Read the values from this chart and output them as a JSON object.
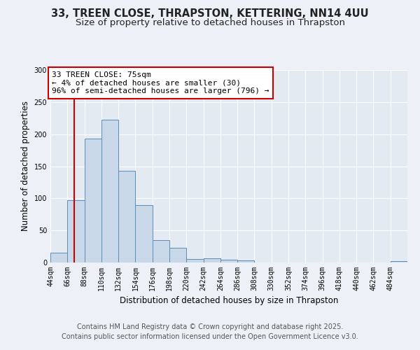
{
  "title_line1": "33, TREEN CLOSE, THRAPSTON, KETTERING, NN14 4UU",
  "title_line2": "Size of property relative to detached houses in Thrapston",
  "xlabel": "Distribution of detached houses by size in Thrapston",
  "ylabel": "Number of detached properties",
  "bin_labels": [
    "44sqm",
    "66sqm",
    "88sqm",
    "110sqm",
    "132sqm",
    "154sqm",
    "176sqm",
    "198sqm",
    "220sqm",
    "242sqm",
    "264sqm",
    "286sqm",
    "308sqm",
    "330sqm",
    "352sqm",
    "374sqm",
    "396sqm",
    "418sqm",
    "440sqm",
    "462sqm",
    "484sqm"
  ],
  "bin_edges": [
    44,
    66,
    88,
    110,
    132,
    154,
    176,
    198,
    220,
    242,
    264,
    286,
    308,
    330,
    352,
    374,
    396,
    418,
    440,
    462,
    484,
    506
  ],
  "bar_heights": [
    15,
    97,
    193,
    222,
    143,
    89,
    35,
    23,
    5,
    7,
    4,
    3,
    0,
    0,
    0,
    0,
    0,
    0,
    0,
    0,
    2
  ],
  "bar_color": "#c8d8e8",
  "bar_edgecolor": "#5b8db8",
  "property_size": 75,
  "red_line_color": "#cc0000",
  "annotation_box_text": "33 TREEN CLOSE: 75sqm\n← 4% of detached houses are smaller (30)\n96% of semi-detached houses are larger (796) →",
  "annotation_box_color": "#ffffff",
  "annotation_box_edgecolor": "#cc0000",
  "ylim": [
    0,
    300
  ],
  "yticks": [
    0,
    50,
    100,
    150,
    200,
    250,
    300
  ],
  "footer_line1": "Contains HM Land Registry data © Crown copyright and database right 2025.",
  "footer_line2": "Contains public sector information licensed under the Open Government Licence v3.0.",
  "background_color": "#edf1f7",
  "plot_background": "#e4eaf2",
  "grid_color": "#ffffff",
  "title_fontsize": 10.5,
  "subtitle_fontsize": 9.5,
  "axis_label_fontsize": 8.5,
  "tick_fontsize": 7,
  "annotation_fontsize": 8,
  "footer_fontsize": 7
}
